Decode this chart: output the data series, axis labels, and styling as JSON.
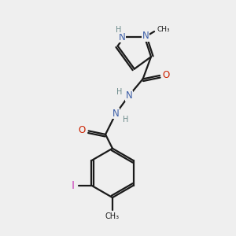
{
  "bg_color": "#efefef",
  "bond_color": "#1a1a1a",
  "n_color": "#3d5fa8",
  "o_color": "#cc2200",
  "i_color": "#cc44bb",
  "h_color": "#6a8a8a",
  "font_size_atom": 8.5,
  "font_size_small": 7.0,
  "line_width": 1.6,
  "xlim": [
    0,
    10
  ],
  "ylim": [
    0,
    10
  ]
}
